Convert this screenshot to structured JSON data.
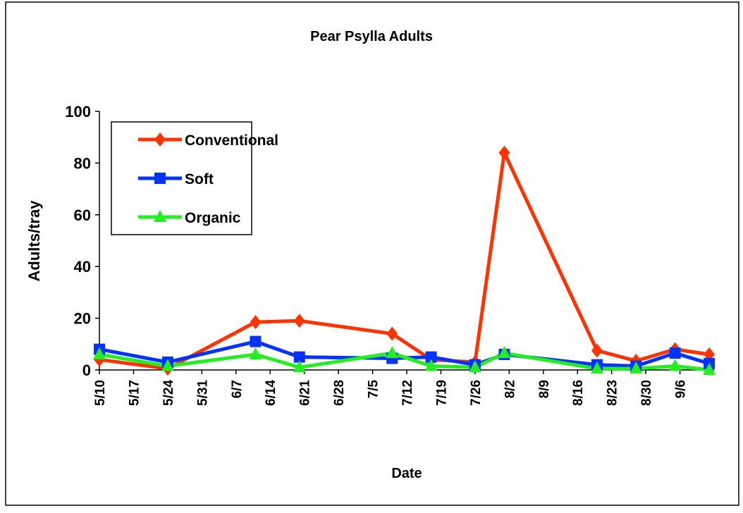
{
  "chart_data": {
    "type": "line",
    "title": "Pear Psylla Adults",
    "x_label": "Date",
    "y_label": "Adults/tray",
    "x": [
      "5/10",
      "5/24",
      "6/11",
      "6/20",
      "7/9",
      "7/17",
      "7/26",
      "8/1",
      "8/20",
      "8/28",
      "9/5",
      "9/12"
    ],
    "series": [
      {
        "name": "Conventional",
        "color": "#ff3300",
        "marker": "diamond",
        "values": [
          4,
          0.5,
          18.5,
          19,
          14,
          4,
          3,
          84,
          7.5,
          3.5,
          8,
          6
        ]
      },
      {
        "name": "Soft",
        "color": "#0033ff",
        "marker": "square",
        "values": [
          8,
          3,
          11,
          5,
          4.5,
          5,
          2,
          6,
          2,
          1.5,
          6.5,
          2.5
        ]
      },
      {
        "name": "Organic",
        "color": "#22ee22",
        "marker": "triangle",
        "values": [
          6,
          1.5,
          6,
          1,
          6.5,
          1.5,
          1,
          6.5,
          0.5,
          0.5,
          1.5,
          0
        ]
      }
    ],
    "xlim": [
      "5/10",
      "9/13"
    ],
    "xticks": [
      "5/10",
      "5/17",
      "5/24",
      "5/31",
      "6/7",
      "6/14",
      "6/21",
      "6/28",
      "7/5",
      "7/12",
      "7/19",
      "7/26",
      "8/2",
      "8/9",
      "8/16",
      "8/23",
      "8/30",
      "9/6"
    ],
    "ylim": [
      0,
      100
    ],
    "yticks": [
      0,
      20,
      40,
      60,
      80,
      100
    ],
    "legend": "upper left"
  }
}
